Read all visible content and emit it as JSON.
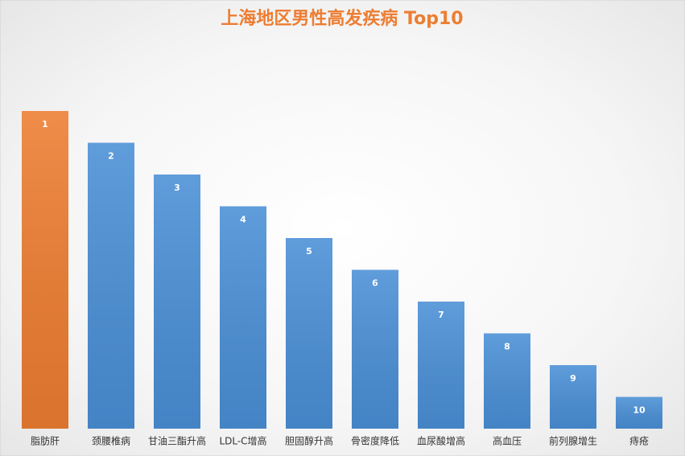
{
  "chart_data": {
    "type": "bar",
    "title": "上海地区男性高发疾病 Top10",
    "categories": [
      "脂肪肝",
      "颈腰椎病",
      "甘油三酯升高",
      "LDL-C增高",
      "胆固醇升高",
      "骨密度降低",
      "血尿酸增高",
      "高血压",
      "前列腺增生",
      "痔疮"
    ],
    "values": [
      1,
      2,
      3,
      4,
      5,
      6,
      7,
      8,
      9,
      10
    ],
    "ylim": [
      11,
      1
    ],
    "colors": [
      "#ed7d31",
      "#4a8fd6",
      "#4a8fd6",
      "#4a8fd6",
      "#4a8fd6",
      "#4a8fd6",
      "#4a8fd6",
      "#4a8fd6",
      "#4a8fd6",
      "#4a8fd6"
    ],
    "title_color": "#ed7d31"
  }
}
